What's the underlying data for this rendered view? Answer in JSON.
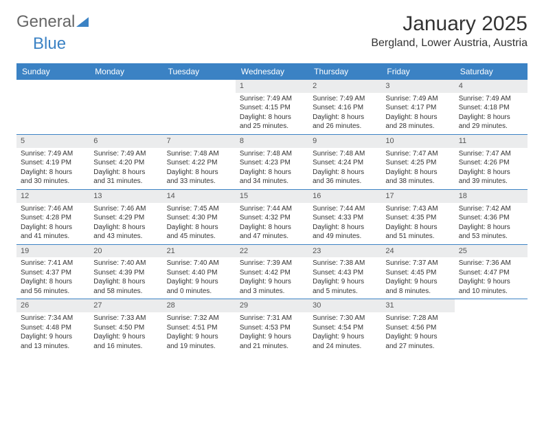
{
  "logo": {
    "general": "General",
    "blue": "Blue"
  },
  "title": "January 2025",
  "location": "Bergland, Lower Austria, Austria",
  "colors": {
    "header_bg": "#3b82c4",
    "header_text": "#ffffff",
    "daynum_bg": "#ebeced",
    "week_border": "#3b82c4",
    "text": "#333333",
    "background": "#ffffff"
  },
  "typography": {
    "title_fontsize": 30,
    "location_fontsize": 16,
    "dayheader_fontsize": 12,
    "cell_fontsize": 10
  },
  "day_headers": [
    "Sunday",
    "Monday",
    "Tuesday",
    "Wednesday",
    "Thursday",
    "Friday",
    "Saturday"
  ],
  "weeks": [
    [
      {
        "day": "",
        "sunrise": "",
        "sunset": "",
        "daylight1": "",
        "daylight2": ""
      },
      {
        "day": "",
        "sunrise": "",
        "sunset": "",
        "daylight1": "",
        "daylight2": ""
      },
      {
        "day": "",
        "sunrise": "",
        "sunset": "",
        "daylight1": "",
        "daylight2": ""
      },
      {
        "day": "1",
        "sunrise": "Sunrise: 7:49 AM",
        "sunset": "Sunset: 4:15 PM",
        "daylight1": "Daylight: 8 hours",
        "daylight2": "and 25 minutes."
      },
      {
        "day": "2",
        "sunrise": "Sunrise: 7:49 AM",
        "sunset": "Sunset: 4:16 PM",
        "daylight1": "Daylight: 8 hours",
        "daylight2": "and 26 minutes."
      },
      {
        "day": "3",
        "sunrise": "Sunrise: 7:49 AM",
        "sunset": "Sunset: 4:17 PM",
        "daylight1": "Daylight: 8 hours",
        "daylight2": "and 28 minutes."
      },
      {
        "day": "4",
        "sunrise": "Sunrise: 7:49 AM",
        "sunset": "Sunset: 4:18 PM",
        "daylight1": "Daylight: 8 hours",
        "daylight2": "and 29 minutes."
      }
    ],
    [
      {
        "day": "5",
        "sunrise": "Sunrise: 7:49 AM",
        "sunset": "Sunset: 4:19 PM",
        "daylight1": "Daylight: 8 hours",
        "daylight2": "and 30 minutes."
      },
      {
        "day": "6",
        "sunrise": "Sunrise: 7:49 AM",
        "sunset": "Sunset: 4:20 PM",
        "daylight1": "Daylight: 8 hours",
        "daylight2": "and 31 minutes."
      },
      {
        "day": "7",
        "sunrise": "Sunrise: 7:48 AM",
        "sunset": "Sunset: 4:22 PM",
        "daylight1": "Daylight: 8 hours",
        "daylight2": "and 33 minutes."
      },
      {
        "day": "8",
        "sunrise": "Sunrise: 7:48 AM",
        "sunset": "Sunset: 4:23 PM",
        "daylight1": "Daylight: 8 hours",
        "daylight2": "and 34 minutes."
      },
      {
        "day": "9",
        "sunrise": "Sunrise: 7:48 AM",
        "sunset": "Sunset: 4:24 PM",
        "daylight1": "Daylight: 8 hours",
        "daylight2": "and 36 minutes."
      },
      {
        "day": "10",
        "sunrise": "Sunrise: 7:47 AM",
        "sunset": "Sunset: 4:25 PM",
        "daylight1": "Daylight: 8 hours",
        "daylight2": "and 38 minutes."
      },
      {
        "day": "11",
        "sunrise": "Sunrise: 7:47 AM",
        "sunset": "Sunset: 4:26 PM",
        "daylight1": "Daylight: 8 hours",
        "daylight2": "and 39 minutes."
      }
    ],
    [
      {
        "day": "12",
        "sunrise": "Sunrise: 7:46 AM",
        "sunset": "Sunset: 4:28 PM",
        "daylight1": "Daylight: 8 hours",
        "daylight2": "and 41 minutes."
      },
      {
        "day": "13",
        "sunrise": "Sunrise: 7:46 AM",
        "sunset": "Sunset: 4:29 PM",
        "daylight1": "Daylight: 8 hours",
        "daylight2": "and 43 minutes."
      },
      {
        "day": "14",
        "sunrise": "Sunrise: 7:45 AM",
        "sunset": "Sunset: 4:30 PM",
        "daylight1": "Daylight: 8 hours",
        "daylight2": "and 45 minutes."
      },
      {
        "day": "15",
        "sunrise": "Sunrise: 7:44 AM",
        "sunset": "Sunset: 4:32 PM",
        "daylight1": "Daylight: 8 hours",
        "daylight2": "and 47 minutes."
      },
      {
        "day": "16",
        "sunrise": "Sunrise: 7:44 AM",
        "sunset": "Sunset: 4:33 PM",
        "daylight1": "Daylight: 8 hours",
        "daylight2": "and 49 minutes."
      },
      {
        "day": "17",
        "sunrise": "Sunrise: 7:43 AM",
        "sunset": "Sunset: 4:35 PM",
        "daylight1": "Daylight: 8 hours",
        "daylight2": "and 51 minutes."
      },
      {
        "day": "18",
        "sunrise": "Sunrise: 7:42 AM",
        "sunset": "Sunset: 4:36 PM",
        "daylight1": "Daylight: 8 hours",
        "daylight2": "and 53 minutes."
      }
    ],
    [
      {
        "day": "19",
        "sunrise": "Sunrise: 7:41 AM",
        "sunset": "Sunset: 4:37 PM",
        "daylight1": "Daylight: 8 hours",
        "daylight2": "and 56 minutes."
      },
      {
        "day": "20",
        "sunrise": "Sunrise: 7:40 AM",
        "sunset": "Sunset: 4:39 PM",
        "daylight1": "Daylight: 8 hours",
        "daylight2": "and 58 minutes."
      },
      {
        "day": "21",
        "sunrise": "Sunrise: 7:40 AM",
        "sunset": "Sunset: 4:40 PM",
        "daylight1": "Daylight: 9 hours",
        "daylight2": "and 0 minutes."
      },
      {
        "day": "22",
        "sunrise": "Sunrise: 7:39 AM",
        "sunset": "Sunset: 4:42 PM",
        "daylight1": "Daylight: 9 hours",
        "daylight2": "and 3 minutes."
      },
      {
        "day": "23",
        "sunrise": "Sunrise: 7:38 AM",
        "sunset": "Sunset: 4:43 PM",
        "daylight1": "Daylight: 9 hours",
        "daylight2": "and 5 minutes."
      },
      {
        "day": "24",
        "sunrise": "Sunrise: 7:37 AM",
        "sunset": "Sunset: 4:45 PM",
        "daylight1": "Daylight: 9 hours",
        "daylight2": "and 8 minutes."
      },
      {
        "day": "25",
        "sunrise": "Sunrise: 7:36 AM",
        "sunset": "Sunset: 4:47 PM",
        "daylight1": "Daylight: 9 hours",
        "daylight2": "and 10 minutes."
      }
    ],
    [
      {
        "day": "26",
        "sunrise": "Sunrise: 7:34 AM",
        "sunset": "Sunset: 4:48 PM",
        "daylight1": "Daylight: 9 hours",
        "daylight2": "and 13 minutes."
      },
      {
        "day": "27",
        "sunrise": "Sunrise: 7:33 AM",
        "sunset": "Sunset: 4:50 PM",
        "daylight1": "Daylight: 9 hours",
        "daylight2": "and 16 minutes."
      },
      {
        "day": "28",
        "sunrise": "Sunrise: 7:32 AM",
        "sunset": "Sunset: 4:51 PM",
        "daylight1": "Daylight: 9 hours",
        "daylight2": "and 19 minutes."
      },
      {
        "day": "29",
        "sunrise": "Sunrise: 7:31 AM",
        "sunset": "Sunset: 4:53 PM",
        "daylight1": "Daylight: 9 hours",
        "daylight2": "and 21 minutes."
      },
      {
        "day": "30",
        "sunrise": "Sunrise: 7:30 AM",
        "sunset": "Sunset: 4:54 PM",
        "daylight1": "Daylight: 9 hours",
        "daylight2": "and 24 minutes."
      },
      {
        "day": "31",
        "sunrise": "Sunrise: 7:28 AM",
        "sunset": "Sunset: 4:56 PM",
        "daylight1": "Daylight: 9 hours",
        "daylight2": "and 27 minutes."
      },
      {
        "day": "",
        "sunrise": "",
        "sunset": "",
        "daylight1": "",
        "daylight2": ""
      }
    ]
  ]
}
